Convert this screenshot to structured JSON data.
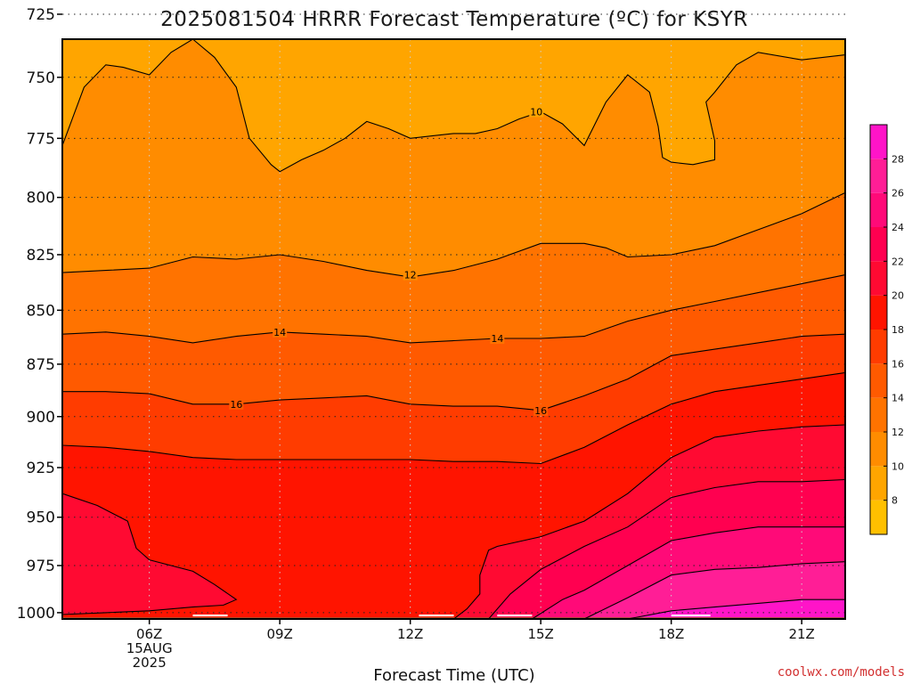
{
  "chart_data": {
    "type": "contour",
    "title": "2025081504 HRRR Forecast Temperature (ºC) for KSYR",
    "xlabel": "Forecast Time (UTC)",
    "ylabel": "",
    "credit": "coolwx.com/models",
    "x_unit": "hour UTC, 15 Aug 2025",
    "xlim": [
      4.0,
      22.0
    ],
    "ylim_hPa": [
      1005,
      707
    ],
    "y_ticks": [
      725,
      750,
      775,
      800,
      825,
      850,
      875,
      900,
      925,
      950,
      975,
      1000
    ],
    "x_ticks": [
      {
        "hour": 6,
        "lines": [
          "06Z",
          "15AUG",
          "2025"
        ]
      },
      {
        "hour": 9,
        "lines": [
          "09Z"
        ]
      },
      {
        "hour": 12,
        "lines": [
          "12Z"
        ]
      },
      {
        "hour": 15,
        "lines": [
          "15Z"
        ]
      },
      {
        "hour": 18,
        "lines": [
          "18Z"
        ]
      },
      {
        "hour": 21,
        "lines": [
          "21Z"
        ]
      }
    ],
    "grid": true,
    "ground_color": "#a0522d",
    "colorbar": {
      "ticks": [
        8,
        10,
        12,
        14,
        16,
        18,
        20,
        22,
        24,
        26,
        28
      ],
      "bands": [
        {
          "from": 6,
          "to": 8,
          "color": "#ffc000"
        },
        {
          "from": 8,
          "to": 10,
          "color": "#ffa500"
        },
        {
          "from": 10,
          "to": 12,
          "color": "#ff8c00"
        },
        {
          "from": 12,
          "to": 14,
          "color": "#ff7300"
        },
        {
          "from": 14,
          "to": 16,
          "color": "#ff5a00"
        },
        {
          "from": 16,
          "to": 18,
          "color": "#ff3c00"
        },
        {
          "from": 18,
          "to": 20,
          "color": "#ff1400"
        },
        {
          "from": 20,
          "to": 22,
          "color": "#ff0a32"
        },
        {
          "from": 22,
          "to": 24,
          "color": "#ff0050"
        },
        {
          "from": 24,
          "to": 26,
          "color": "#ff0a78"
        },
        {
          "from": 26,
          "to": 28,
          "color": "#ff1e96"
        },
        {
          "from": 28,
          "to": 30,
          "color": "#ff14c8"
        }
      ]
    },
    "contours": [
      {
        "level": 10,
        "color": "#ffa500",
        "labels": [
          {
            "hour": 14.9,
            "p": 764
          }
        ],
        "points": [
          [
            4.0,
            778
          ],
          [
            4.5,
            754
          ],
          [
            5.0,
            745
          ],
          [
            5.4,
            746
          ],
          [
            6.0,
            749
          ],
          [
            6.5,
            740
          ],
          [
            7.0,
            730
          ],
          [
            7.5,
            742
          ],
          [
            8.0,
            754
          ],
          [
            8.3,
            775
          ],
          [
            8.8,
            786
          ],
          [
            9.0,
            789
          ],
          [
            9.5,
            784
          ],
          [
            10.0,
            780
          ],
          [
            10.5,
            775
          ],
          [
            11.0,
            768
          ],
          [
            11.5,
            771
          ],
          [
            12.0,
            775
          ],
          [
            12.5,
            774
          ],
          [
            13.0,
            773
          ],
          [
            13.5,
            773
          ],
          [
            14.0,
            771
          ],
          [
            14.5,
            767
          ],
          [
            15.0,
            764
          ],
          [
            15.5,
            769
          ],
          [
            16.0,
            778
          ],
          [
            16.5,
            760
          ],
          [
            17.0,
            749
          ],
          [
            17.5,
            756
          ],
          [
            17.7,
            770
          ],
          [
            17.8,
            783
          ],
          [
            18.0,
            785
          ],
          [
            18.5,
            786
          ],
          [
            19.0,
            784
          ],
          [
            19.0,
            776
          ],
          [
            18.8,
            760
          ],
          [
            19.0,
            756
          ],
          [
            19.5,
            745
          ],
          [
            20.0,
            740
          ],
          [
            21.0,
            743
          ],
          [
            22.0,
            741
          ]
        ]
      },
      {
        "level": 12,
        "color": "#ff8c00",
        "labels": [
          {
            "hour": 12.0,
            "p": 834
          }
        ],
        "points": [
          [
            4.0,
            833
          ],
          [
            5.0,
            832
          ],
          [
            6.0,
            831
          ],
          [
            7.0,
            826
          ],
          [
            8.0,
            827
          ],
          [
            9.0,
            825
          ],
          [
            10.0,
            828
          ],
          [
            11.0,
            832
          ],
          [
            12.0,
            835
          ],
          [
            13.0,
            832
          ],
          [
            14.0,
            827
          ],
          [
            15.0,
            820
          ],
          [
            16.0,
            820
          ],
          [
            16.5,
            822
          ],
          [
            17.0,
            826
          ],
          [
            18.0,
            825
          ],
          [
            19.0,
            821
          ],
          [
            20.0,
            814
          ],
          [
            21.0,
            807
          ],
          [
            22.0,
            798
          ]
        ]
      },
      {
        "level": 14,
        "color": "#ff7300",
        "labels": [
          {
            "hour": 9.0,
            "p": 860
          },
          {
            "hour": 14.0,
            "p": 863
          }
        ],
        "points": [
          [
            4.0,
            861
          ],
          [
            5.0,
            860
          ],
          [
            6.0,
            862
          ],
          [
            7.0,
            865
          ],
          [
            8.0,
            862
          ],
          [
            9.0,
            860
          ],
          [
            10.0,
            861
          ],
          [
            11.0,
            862
          ],
          [
            12.0,
            865
          ],
          [
            13.0,
            864
          ],
          [
            14.0,
            863
          ],
          [
            15.0,
            863
          ],
          [
            16.0,
            862
          ],
          [
            17.0,
            855
          ],
          [
            18.0,
            850
          ],
          [
            19.0,
            846
          ],
          [
            20.0,
            842
          ],
          [
            21.0,
            838
          ],
          [
            22.0,
            834
          ]
        ]
      },
      {
        "level": 16,
        "color": "#ff5a00",
        "labels": [
          {
            "hour": 8.0,
            "p": 894
          },
          {
            "hour": 15.0,
            "p": 897
          }
        ],
        "points": [
          [
            4.0,
            888
          ],
          [
            5.0,
            888
          ],
          [
            6.0,
            889
          ],
          [
            7.0,
            894
          ],
          [
            8.0,
            894
          ],
          [
            9.0,
            892
          ],
          [
            10.0,
            891
          ],
          [
            11.0,
            890
          ],
          [
            12.0,
            894
          ],
          [
            13.0,
            895
          ],
          [
            14.0,
            895
          ],
          [
            15.0,
            897
          ],
          [
            16.0,
            890
          ],
          [
            17.0,
            882
          ],
          [
            18.0,
            871
          ],
          [
            19.0,
            868
          ],
          [
            20.0,
            865
          ],
          [
            21.0,
            862
          ],
          [
            22.0,
            861
          ]
        ]
      },
      {
        "level": 18,
        "color": "#ff3c00",
        "labels": [],
        "points": [
          [
            4.0,
            914
          ],
          [
            5.0,
            915
          ],
          [
            6.0,
            917
          ],
          [
            7.0,
            920
          ],
          [
            8.0,
            921
          ],
          [
            9.0,
            921
          ],
          [
            10.0,
            921
          ],
          [
            11.0,
            921
          ],
          [
            12.0,
            921
          ],
          [
            13.0,
            922
          ],
          [
            14.0,
            922
          ],
          [
            15.0,
            923
          ],
          [
            16.0,
            915
          ],
          [
            17.0,
            904
          ],
          [
            18.0,
            894
          ],
          [
            19.0,
            888
          ],
          [
            20.0,
            885
          ],
          [
            21.0,
            882
          ],
          [
            22.0,
            879
          ]
        ]
      },
      {
        "level": 20,
        "color": "#ff0a32",
        "labels": [],
        "points": [
          [
            4.0,
            938
          ],
          [
            4.8,
            944
          ],
          [
            5.5,
            952
          ],
          [
            5.7,
            966
          ],
          [
            6.0,
            972
          ],
          [
            6.5,
            975
          ],
          [
            7.0,
            978
          ],
          [
            7.5,
            985
          ],
          [
            8.0,
            993
          ],
          [
            7.7,
            996
          ],
          [
            7.0,
            997
          ],
          [
            6.5,
            998
          ],
          [
            6.0,
            999
          ],
          [
            5.0,
            1000
          ],
          [
            4.0,
            1001
          ],
          [
            4.0,
            1005
          ],
          [
            13.0,
            1005
          ],
          [
            13.3,
            998
          ],
          [
            13.6,
            990
          ],
          [
            13.6,
            980
          ],
          [
            13.8,
            967
          ],
          [
            14.0,
            965
          ],
          [
            15.0,
            960
          ],
          [
            16.0,
            952
          ],
          [
            17.0,
            938
          ],
          [
            18.0,
            920
          ],
          [
            19.0,
            910
          ],
          [
            20.0,
            907
          ],
          [
            21.0,
            905
          ],
          [
            22.0,
            904
          ]
        ]
      },
      {
        "level": 22,
        "color": "#ff0050",
        "labels": [],
        "points": [
          [
            13.8,
            1005
          ],
          [
            14.3,
            990
          ],
          [
            15.0,
            977
          ],
          [
            16.0,
            965
          ],
          [
            17.0,
            955
          ],
          [
            18.0,
            940
          ],
          [
            19.0,
            935
          ],
          [
            20.0,
            932
          ],
          [
            21.0,
            932
          ],
          [
            22.0,
            931
          ]
        ]
      },
      {
        "level": 24,
        "color": "#ff0a78",
        "labels": [],
        "points": [
          [
            14.8,
            1005
          ],
          [
            15.5,
            993
          ],
          [
            16.0,
            988
          ],
          [
            17.0,
            975
          ],
          [
            18.0,
            962
          ],
          [
            19.0,
            958
          ],
          [
            20.0,
            955
          ],
          [
            21.0,
            955
          ],
          [
            22.0,
            955
          ]
        ]
      },
      {
        "level": 26,
        "color": "#ff1e96",
        "labels": [],
        "points": [
          [
            16.0,
            1005
          ],
          [
            17.0,
            992
          ],
          [
            18.0,
            980
          ],
          [
            19.0,
            977
          ],
          [
            20.0,
            976
          ],
          [
            21.0,
            974
          ],
          [
            22.0,
            973
          ]
        ]
      },
      {
        "level": 28,
        "color": "#ff14c8",
        "labels": [],
        "points": [
          [
            17.0,
            1005
          ],
          [
            18.0,
            999
          ],
          [
            19.0,
            997
          ],
          [
            20.0,
            995
          ],
          [
            21.0,
            993
          ],
          [
            22.0,
            993
          ]
        ]
      }
    ],
    "ground_p": [
      [
        4.0,
        1002
      ],
      [
        5.0,
        1002
      ],
      [
        6.0,
        1002
      ],
      [
        7.0,
        1002
      ],
      [
        8.0,
        1002
      ],
      [
        9.0,
        1002
      ],
      [
        10.0,
        1002
      ],
      [
        11.0,
        1002
      ],
      [
        12.0,
        1002
      ],
      [
        13.0,
        1002
      ],
      [
        14.0,
        1002
      ],
      [
        15.0,
        1002
      ],
      [
        16.0,
        1002
      ],
      [
        17.0,
        1002
      ],
      [
        18.0,
        1002
      ],
      [
        19.0,
        1002
      ],
      [
        20.0,
        1002
      ],
      [
        21.0,
        1002
      ],
      [
        22.0,
        1002
      ]
    ],
    "surface_marks": [
      [
        7.0,
        7.8
      ],
      [
        12.2,
        13.0
      ],
      [
        14.0,
        14.8
      ],
      [
        18.0,
        18.9
      ]
    ]
  }
}
